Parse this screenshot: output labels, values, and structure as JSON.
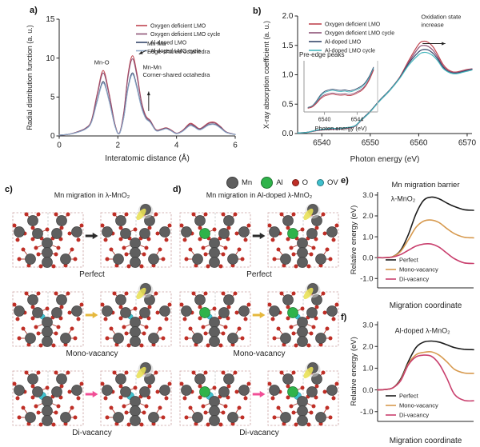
{
  "atom_legend": [
    {
      "name": "Mn",
      "color": "#5f5f5f",
      "size": 13
    },
    {
      "name": "Al",
      "color": "#2fb34a",
      "size": 13
    },
    {
      "name": "O",
      "color": "#bf2e26",
      "size": 7
    },
    {
      "name": "OV",
      "color": "#3fc0cd",
      "size": 7
    }
  ],
  "panels": {
    "a": {
      "label": "a)"
    },
    "b": {
      "label": "b)"
    },
    "c": {
      "label": "c)",
      "title": "Mn migration in λ-MnO₂",
      "al_doped": false,
      "rows": [
        {
          "caption": "Perfect",
          "vacancy": "none",
          "arrow_color": "#2b2b2b"
        },
        {
          "caption": "Mono-vacancy",
          "vacancy": "mono",
          "arrow_color": "#e6b83d"
        },
        {
          "caption": "Di-vacancy",
          "vacancy": "di",
          "arrow_color": "#f14e96"
        }
      ]
    },
    "d": {
      "label": "d)",
      "title": "Mn migration in Al-doped λ-MnO₂",
      "al_doped": true,
      "rows": [
        {
          "caption": "Perfect",
          "vacancy": "none",
          "arrow_color": "#2b2b2b"
        },
        {
          "caption": "Mono-vacancy",
          "vacancy": "mono",
          "arrow_color": "#e6b83d"
        },
        {
          "caption": "Di-vacancy",
          "vacancy": "di",
          "arrow_color": "#f14e96"
        }
      ]
    },
    "e": {
      "label": "e)"
    },
    "f": {
      "label": "f)"
    }
  },
  "chart_data": [
    {
      "id": "a",
      "type": "line",
      "title": "",
      "xlabel": "Interatomic distance (Å)",
      "ylabel": "Radial distribution function (a. u.)",
      "xlim": [
        0,
        6
      ],
      "ylim": [
        0,
        15
      ],
      "xticks": [
        "0",
        "2",
        "4",
        "6"
      ],
      "yticks": [
        "0",
        "5",
        "10",
        "15"
      ],
      "legend_position": "top-right",
      "grid": false,
      "x": [
        0,
        0.3,
        0.6,
        0.9,
        1.1,
        1.3,
        1.5,
        1.7,
        1.9,
        2.05,
        2.2,
        2.35,
        2.5,
        2.65,
        2.8,
        2.95,
        3.1,
        3.3,
        3.5,
        3.65,
        3.8,
        4.0,
        4.2,
        4.45,
        4.6,
        4.8,
        5.1,
        5.3,
        5.5,
        5.7,
        6.0
      ],
      "series": [
        {
          "name": "Oxygen deficient LMO",
          "color": "#c04550",
          "values": [
            0.1,
            0.2,
            0.5,
            1.0,
            2.0,
            5.5,
            8.4,
            5.5,
            1.5,
            0.35,
            3.0,
            8.0,
            10.3,
            8.0,
            4.5,
            2.6,
            2.0,
            0.8,
            0.9,
            1.05,
            0.8,
            0.35,
            0.7,
            1.6,
            1.4,
            0.95,
            1.7,
            1.75,
            1.2,
            0.5,
            0.2
          ]
        },
        {
          "name": "Oxygen deficient LMO cycle",
          "color": "#8e5276",
          "values": [
            0.1,
            0.2,
            0.5,
            1.0,
            1.9,
            5.3,
            8.1,
            5.3,
            1.45,
            0.35,
            2.9,
            7.7,
            9.9,
            7.7,
            4.35,
            2.5,
            1.95,
            0.75,
            0.85,
            1.0,
            0.75,
            0.35,
            0.65,
            1.5,
            1.3,
            0.9,
            1.6,
            1.65,
            1.15,
            0.5,
            0.2
          ]
        },
        {
          "name": "Al-doped LMO",
          "color": "#35476b",
          "values": [
            0.1,
            0.2,
            0.45,
            0.9,
            1.8,
            4.6,
            7.0,
            4.6,
            1.3,
            0.3,
            2.4,
            6.3,
            8.1,
            6.3,
            3.8,
            2.3,
            1.8,
            0.7,
            0.8,
            0.95,
            0.7,
            0.3,
            0.6,
            1.35,
            1.2,
            0.8,
            1.45,
            1.5,
            1.05,
            0.45,
            0.18
          ]
        },
        {
          "name": "Al-doped LMO cycle",
          "color": "#8fa8c8",
          "values": [
            0.1,
            0.2,
            0.45,
            0.88,
            1.75,
            4.5,
            6.8,
            4.5,
            1.25,
            0.3,
            2.35,
            6.1,
            7.9,
            6.1,
            3.7,
            2.25,
            1.75,
            0.68,
            0.78,
            0.92,
            0.68,
            0.3,
            0.58,
            1.3,
            1.15,
            0.78,
            1.4,
            1.45,
            1.0,
            0.43,
            0.18
          ]
        }
      ],
      "annotations": [
        {
          "text": "Mn-O",
          "x": 1.45,
          "y": 9.2,
          "align": "middle"
        },
        {
          "text": "Mn-Mn\nEdge-shared octahedra",
          "x": 3.0,
          "y": 11.6,
          "align": "start"
        },
        {
          "text": "Mn-Mn\nCorner-shared octahedra",
          "x": 2.85,
          "y": 8.6,
          "align": "start"
        }
      ],
      "arrows": [
        {
          "x1": 2.97,
          "y1": 11.0,
          "x2": 2.72,
          "y2": 10.5
        },
        {
          "x1": 3.05,
          "y1": 3.2,
          "x2": 3.05,
          "y2": 5.7
        }
      ]
    },
    {
      "id": "b",
      "type": "line",
      "title": "",
      "xlabel": "Photon energy (eV)",
      "ylabel": "X-ray absorption coefficient (a. u.)",
      "xlim": [
        6535,
        6571
      ],
      "ylim": [
        0,
        2
      ],
      "xticks": [
        "6540",
        "6550",
        "6560",
        "6570"
      ],
      "yticks": [
        "0.0",
        "0.5",
        "1.0",
        "1.5",
        "2.0"
      ],
      "legend_position": "top-left",
      "grid": false,
      "x": [
        6535,
        6537,
        6539,
        6540,
        6541,
        6542,
        6543,
        6544,
        6545,
        6546,
        6547,
        6548,
        6549,
        6550,
        6552,
        6554,
        6556,
        6558,
        6560,
        6561,
        6562,
        6563,
        6564,
        6565,
        6566,
        6567,
        6568,
        6569,
        6570,
        6571
      ],
      "series": [
        {
          "name": "Oxygen deficient LMO",
          "color": "#c04550",
          "values": [
            0.01,
            0.02,
            0.05,
            0.06,
            0.07,
            0.075,
            0.07,
            0.08,
            0.09,
            0.1,
            0.13,
            0.22,
            0.3,
            0.38,
            0.57,
            0.74,
            0.95,
            1.25,
            1.52,
            1.57,
            1.55,
            1.47,
            1.33,
            1.18,
            1.09,
            1.05,
            1.05,
            1.07,
            1.09,
            1.1
          ]
        },
        {
          "name": "Oxygen deficient LMO cycle",
          "color": "#8e5276",
          "values": [
            0.01,
            0.02,
            0.05,
            0.06,
            0.07,
            0.075,
            0.07,
            0.08,
            0.09,
            0.1,
            0.13,
            0.21,
            0.29,
            0.37,
            0.56,
            0.73,
            0.94,
            1.22,
            1.46,
            1.5,
            1.48,
            1.41,
            1.29,
            1.15,
            1.07,
            1.04,
            1.04,
            1.06,
            1.08,
            1.1
          ]
        },
        {
          "name": "Al-doped LMO",
          "color": "#35476b",
          "values": [
            0.01,
            0.02,
            0.06,
            0.07,
            0.08,
            0.09,
            0.085,
            0.09,
            0.1,
            0.11,
            0.14,
            0.22,
            0.3,
            0.38,
            0.57,
            0.74,
            0.94,
            1.2,
            1.39,
            1.43,
            1.42,
            1.36,
            1.26,
            1.13,
            1.06,
            1.03,
            1.03,
            1.05,
            1.07,
            1.09
          ]
        },
        {
          "name": "Al-doped LMO cycle",
          "color": "#45b6bd",
          "values": [
            0.01,
            0.02,
            0.06,
            0.07,
            0.08,
            0.09,
            0.085,
            0.09,
            0.1,
            0.11,
            0.14,
            0.22,
            0.29,
            0.37,
            0.56,
            0.73,
            0.93,
            1.17,
            1.34,
            1.38,
            1.37,
            1.32,
            1.23,
            1.11,
            1.05,
            1.02,
            1.02,
            1.04,
            1.06,
            1.08
          ]
        }
      ],
      "annotations": [
        {
          "text": "Oxidation state\nincrease",
          "x": 6560.5,
          "y": 1.95,
          "align": "start"
        }
      ],
      "arrows": [
        {
          "x1": 6560.8,
          "y1": 1.53,
          "x2": 6565.5,
          "y2": 1.53
        }
      ]
    },
    {
      "id": "b_inset",
      "type": "line",
      "title": "Pre-edge peaks",
      "xlabel": "Photon energy (eV)",
      "ylabel": "",
      "xlim": [
        6537.5,
        6546.5
      ],
      "ylim": [
        0,
        1.35
      ],
      "xticks": [
        "6540",
        "6544"
      ],
      "yticks": [],
      "legend_position": "none",
      "grid": false,
      "x": [
        6538,
        6538.5,
        6539,
        6539.5,
        6540,
        6540.5,
        6541,
        6541.5,
        6542,
        6542.5,
        6543,
        6543.5,
        6544,
        6544.5,
        6545,
        6545.5,
        6546
      ],
      "series": [
        {
          "name": "Al-doped LMO",
          "color": "#35476b",
          "values": [
            0.12,
            0.16,
            0.28,
            0.44,
            0.54,
            0.58,
            0.6,
            0.58,
            0.57,
            0.58,
            0.56,
            0.58,
            0.62,
            0.68,
            0.78,
            0.95,
            1.18
          ]
        },
        {
          "name": "Al-doped LMO cycle",
          "color": "#45b6bd",
          "values": [
            0.11,
            0.15,
            0.26,
            0.41,
            0.51,
            0.55,
            0.57,
            0.55,
            0.54,
            0.55,
            0.53,
            0.55,
            0.59,
            0.65,
            0.75,
            0.92,
            1.15
          ]
        },
        {
          "name": "Oxygen deficient LMO cycle",
          "color": "#8e5276",
          "values": [
            0.1,
            0.14,
            0.24,
            0.37,
            0.45,
            0.48,
            0.5,
            0.48,
            0.47,
            0.48,
            0.46,
            0.48,
            0.53,
            0.59,
            0.7,
            0.88,
            1.12
          ]
        },
        {
          "name": "Oxygen deficient LMO",
          "color": "#c04550",
          "values": [
            0.1,
            0.13,
            0.22,
            0.34,
            0.42,
            0.45,
            0.47,
            0.45,
            0.44,
            0.45,
            0.43,
            0.45,
            0.5,
            0.56,
            0.67,
            0.85,
            1.1
          ]
        }
      ],
      "annotations": [],
      "arrows": []
    },
    {
      "id": "e",
      "type": "line",
      "title": "Mn migration barrier",
      "xlabel": "Migration coordinate",
      "ylabel": "Relative energy (eV)",
      "xlim": [
        0,
        1
      ],
      "ylim": [
        -1.45,
        3.15
      ],
      "xticks": [],
      "yticks": [
        "-1.0",
        "0.0",
        "1.0",
        "2.0",
        "3.0"
      ],
      "legend_position": "bottom-left",
      "grid": false,
      "x": [
        0,
        0.08,
        0.16,
        0.24,
        0.32,
        0.4,
        0.48,
        0.56,
        0.64,
        0.72,
        0.8,
        0.9,
        1.0
      ],
      "series": [
        {
          "name": "Perfect",
          "color": "#1c1c1c",
          "values": [
            0,
            0.0,
            0.05,
            0.35,
            1.1,
            2.1,
            2.75,
            2.9,
            2.82,
            2.62,
            2.45,
            2.3,
            2.27
          ]
        },
        {
          "name": "Mono-vacancy",
          "color": "#d79a4f",
          "values": [
            0,
            0.0,
            0.05,
            0.3,
            0.85,
            1.45,
            1.75,
            1.8,
            1.68,
            1.4,
            1.15,
            0.98,
            0.95
          ]
        },
        {
          "name": "Di-vacancy",
          "color": "#c9406e",
          "values": [
            0,
            0.0,
            0.03,
            0.15,
            0.35,
            0.55,
            0.65,
            0.65,
            0.5,
            0.22,
            -0.05,
            -0.25,
            -0.28
          ]
        }
      ],
      "annotations": [
        {
          "text": "λ-MnO₂",
          "x": 0.14,
          "y": 2.7,
          "align": "start"
        }
      ],
      "arrows": []
    },
    {
      "id": "f",
      "type": "line",
      "title": "",
      "xlabel": "Migration coordinate",
      "ylabel": "Relative energy (eV)",
      "xlim": [
        0,
        1
      ],
      "ylim": [
        -1.45,
        3.15
      ],
      "xticks": [],
      "yticks": [
        "-1.0",
        "0.0",
        "1.0",
        "2.0",
        "3.0"
      ],
      "legend_position": "bottom-left",
      "grid": false,
      "x": [
        0,
        0.08,
        0.16,
        0.24,
        0.32,
        0.4,
        0.48,
        0.56,
        0.64,
        0.72,
        0.8,
        0.9,
        1.0
      ],
      "series": [
        {
          "name": "Perfect",
          "color": "#1c1c1c",
          "values": [
            0,
            0.02,
            0.1,
            0.5,
            1.3,
            1.95,
            2.2,
            2.25,
            2.2,
            2.08,
            1.95,
            1.87,
            1.85
          ]
        },
        {
          "name": "Mono-vacancy",
          "color": "#d79a4f",
          "values": [
            0,
            0.02,
            0.1,
            0.45,
            1.2,
            1.62,
            1.73,
            1.75,
            1.6,
            1.3,
            0.95,
            0.78,
            0.76
          ]
        },
        {
          "name": "Di-vacancy",
          "color": "#c9406e",
          "values": [
            0,
            0.02,
            0.1,
            0.42,
            1.15,
            1.52,
            1.6,
            1.55,
            1.2,
            0.55,
            -0.2,
            -0.48,
            -0.5
          ]
        }
      ],
      "annotations": [
        {
          "text": "Al-doped λ-MnO₂",
          "x": 0.18,
          "y": 2.62,
          "align": "start"
        }
      ],
      "arrows": []
    }
  ]
}
